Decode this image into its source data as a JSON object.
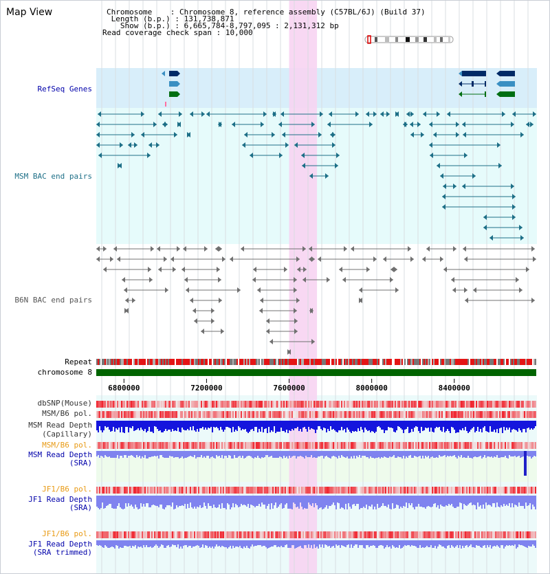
{
  "title": "Map View",
  "header": {
    "chromosome_label": "Chromosome",
    "chromosome_value": "Chromosome 8, reference assembly (C57BL/6J) (Build 37)",
    "length_label": "Length (b.p.)",
    "length_value": "131,738,871",
    "show_label": "Show (b.p.)",
    "show_value": "6,665,784-8,797,095 : 2,131,312 bp",
    "span_label": "Read coverage check span",
    "span_value": "10,000"
  },
  "tracks": {
    "refseq": "RefSeq Genes",
    "msm_bac": "MSM BAC end pairs",
    "b6n_bac": "B6N BAC end pairs",
    "repeat": "Repeat",
    "chromosome": "chromosome 8",
    "dbsnp": "dbSNP(Mouse)",
    "msm_b6_pol": "MSM/B6 pol.",
    "msm_depth_cap_1": "MSM Read Depth",
    "msm_depth_cap_2": "(Capillary)",
    "msm_b6_pol_sra": "MSM/B6 pol.",
    "msm_depth_sra_1": "MSM Read Depth",
    "msm_depth_sra_2": "(SRA)",
    "jf1_b6_pol": "JF1/B6 pol.",
    "jf1_depth_sra_1": "JF1 Read Depth",
    "jf1_depth_sra_2": "(SRA)",
    "jf1_b6_pol_trim": "JF1/B6 pol.",
    "jf1_depth_trim_1": "JF1 Read Depth",
    "jf1_depth_trim_2": "(SRA trimmed)"
  },
  "axis": {
    "range_bp": [
      6665784,
      8797095
    ],
    "ticks": [
      {
        "value": 6800000,
        "label": "6800000"
      },
      {
        "value": 7200000,
        "label": "7200000"
      },
      {
        "value": 7600000,
        "label": "7600000"
      },
      {
        "value": 8000000,
        "label": "8000000"
      },
      {
        "value": 8400000,
        "label": "8400000"
      }
    ]
  },
  "highlight_bp": [
    7600000,
    7735000
  ],
  "colors": {
    "refseq_bg": "#d8eefa",
    "msm_bg": "#e6fbfb",
    "b6n_bg": "#ffffff",
    "highlight": "#f7d4f2",
    "sra_bg": "#eefbec",
    "msm_pair": "#1d6f87",
    "b6n_pair": "#707070",
    "label_blue": "#0000aa",
    "label_teal": "#1d6f87",
    "label_orange": "#e89a14",
    "chromosome_bar": "#006400",
    "depth_dark": "#1515dd",
    "depth_light": "#7f83ef"
  }
}
